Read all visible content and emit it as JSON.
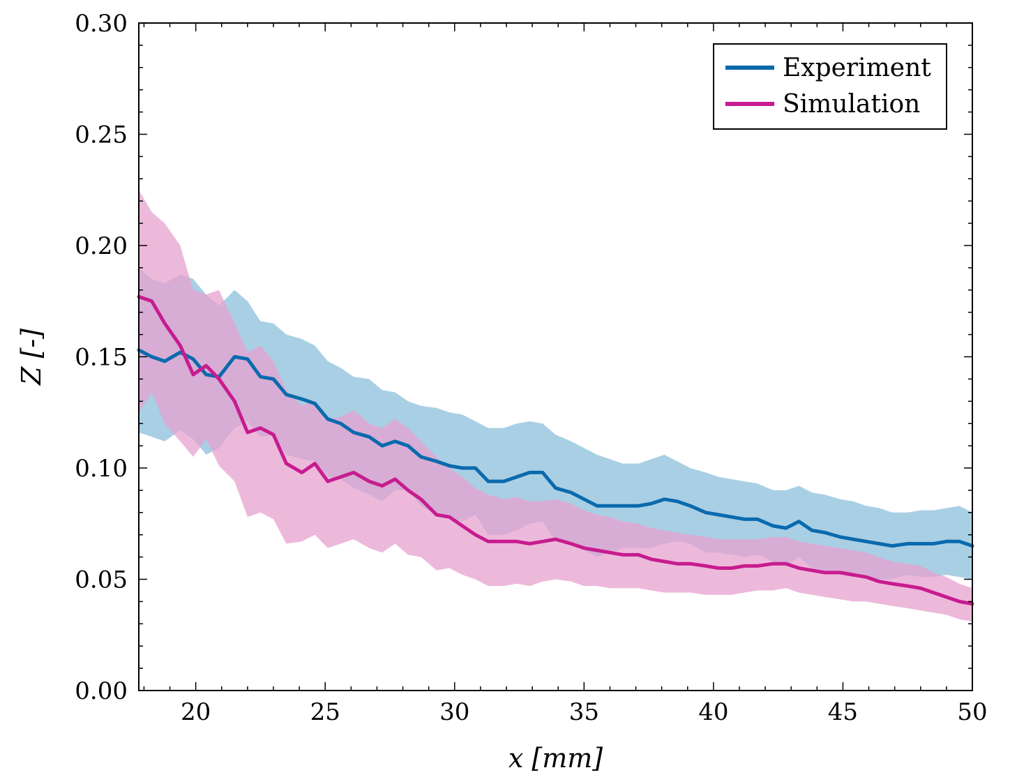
{
  "chart_data": {
    "type": "line",
    "xlabel": "x [mm]",
    "ylabel": "Z [-]",
    "xlim": [
      17.8,
      50
    ],
    "ylim": [
      0,
      0.3
    ],
    "xticks": [
      "20",
      "25",
      "30",
      "35",
      "40",
      "45",
      "50"
    ],
    "yticks": [
      "0.00",
      "0.05",
      "0.10",
      "0.15",
      "0.20",
      "0.25",
      "0.30"
    ],
    "legend_position": "top-right",
    "grid": false,
    "series": [
      {
        "name": "Experiment",
        "color": "#0a6aad",
        "band_color": "#9ac7e1",
        "x": [
          17.8,
          18.3,
          18.8,
          19.4,
          19.9,
          20.4,
          20.9,
          21.5,
          22.0,
          22.5,
          23.0,
          23.5,
          24.1,
          24.6,
          25.1,
          25.6,
          26.1,
          26.7,
          27.2,
          27.7,
          28.2,
          28.7,
          29.3,
          29.8,
          30.3,
          30.8,
          31.3,
          31.9,
          32.4,
          32.9,
          33.4,
          33.9,
          34.5,
          35.0,
          35.5,
          36.0,
          36.5,
          37.1,
          37.6,
          38.1,
          38.6,
          39.1,
          39.7,
          40.2,
          40.7,
          41.2,
          41.7,
          42.3,
          42.8,
          43.3,
          43.8,
          44.3,
          44.9,
          45.4,
          45.9,
          46.4,
          46.9,
          47.5,
          48.0,
          48.5,
          49.0,
          49.5,
          50.0
        ],
        "values": [
          0.153,
          0.15,
          0.148,
          0.152,
          0.149,
          0.142,
          0.141,
          0.15,
          0.149,
          0.141,
          0.14,
          0.133,
          0.131,
          0.129,
          0.122,
          0.12,
          0.116,
          0.114,
          0.11,
          0.112,
          0.11,
          0.105,
          0.103,
          0.101,
          0.1,
          0.1,
          0.094,
          0.094,
          0.096,
          0.098,
          0.098,
          0.091,
          0.089,
          0.086,
          0.083,
          0.083,
          0.083,
          0.083,
          0.084,
          0.086,
          0.085,
          0.083,
          0.08,
          0.079,
          0.078,
          0.077,
          0.077,
          0.074,
          0.073,
          0.076,
          0.072,
          0.071,
          0.069,
          0.068,
          0.067,
          0.066,
          0.065,
          0.066,
          0.066,
          0.066,
          0.067,
          0.067,
          0.065
        ],
        "upper": [
          0.19,
          0.185,
          0.183,
          0.187,
          0.185,
          0.178,
          0.173,
          0.18,
          0.175,
          0.166,
          0.165,
          0.16,
          0.158,
          0.155,
          0.148,
          0.145,
          0.141,
          0.14,
          0.135,
          0.134,
          0.13,
          0.128,
          0.127,
          0.125,
          0.124,
          0.121,
          0.118,
          0.118,
          0.12,
          0.121,
          0.12,
          0.115,
          0.112,
          0.109,
          0.106,
          0.104,
          0.102,
          0.102,
          0.104,
          0.106,
          0.103,
          0.1,
          0.098,
          0.096,
          0.095,
          0.094,
          0.093,
          0.09,
          0.09,
          0.092,
          0.089,
          0.088,
          0.086,
          0.085,
          0.083,
          0.082,
          0.08,
          0.08,
          0.081,
          0.081,
          0.082,
          0.083,
          0.08
        ],
        "lower": [
          0.116,
          0.114,
          0.112,
          0.117,
          0.113,
          0.106,
          0.109,
          0.118,
          0.121,
          0.114,
          0.115,
          0.106,
          0.104,
          0.103,
          0.096,
          0.095,
          0.091,
          0.088,
          0.085,
          0.09,
          0.09,
          0.083,
          0.079,
          0.077,
          0.076,
          0.079,
          0.07,
          0.07,
          0.072,
          0.075,
          0.076,
          0.067,
          0.066,
          0.063,
          0.06,
          0.062,
          0.064,
          0.064,
          0.064,
          0.066,
          0.067,
          0.066,
          0.062,
          0.062,
          0.061,
          0.06,
          0.061,
          0.058,
          0.056,
          0.06,
          0.055,
          0.054,
          0.052,
          0.051,
          0.051,
          0.05,
          0.05,
          0.052,
          0.051,
          0.051,
          0.052,
          0.051,
          0.05
        ]
      },
      {
        "name": "Simulation",
        "color": "#c71c8f",
        "band_color": "#e7a2cf",
        "x": [
          17.8,
          18.3,
          18.8,
          19.4,
          19.9,
          20.4,
          20.9,
          21.5,
          22.0,
          22.5,
          23.0,
          23.5,
          24.1,
          24.6,
          25.1,
          25.6,
          26.1,
          26.7,
          27.2,
          27.7,
          28.2,
          28.7,
          29.3,
          29.8,
          30.3,
          30.8,
          31.3,
          31.9,
          32.4,
          32.9,
          33.4,
          33.9,
          34.5,
          35.0,
          35.5,
          36.0,
          36.5,
          37.1,
          37.6,
          38.1,
          38.6,
          39.1,
          39.7,
          40.2,
          40.7,
          41.2,
          41.7,
          42.3,
          42.8,
          43.3,
          43.8,
          44.3,
          44.9,
          45.4,
          45.9,
          46.4,
          46.9,
          47.5,
          48.0,
          48.5,
          49.0,
          49.5,
          50.0
        ],
        "values": [
          0.177,
          0.175,
          0.165,
          0.155,
          0.142,
          0.146,
          0.14,
          0.13,
          0.116,
          0.118,
          0.115,
          0.102,
          0.098,
          0.102,
          0.094,
          0.096,
          0.098,
          0.094,
          0.092,
          0.095,
          0.09,
          0.086,
          0.079,
          0.078,
          0.074,
          0.07,
          0.067,
          0.067,
          0.067,
          0.066,
          0.067,
          0.068,
          0.066,
          0.064,
          0.063,
          0.062,
          0.061,
          0.061,
          0.059,
          0.058,
          0.057,
          0.057,
          0.056,
          0.055,
          0.055,
          0.056,
          0.056,
          0.057,
          0.057,
          0.055,
          0.054,
          0.053,
          0.053,
          0.052,
          0.051,
          0.049,
          0.048,
          0.047,
          0.046,
          0.044,
          0.042,
          0.04,
          0.039
        ],
        "upper": [
          0.225,
          0.215,
          0.21,
          0.2,
          0.18,
          0.178,
          0.18,
          0.165,
          0.152,
          0.155,
          0.148,
          0.135,
          0.128,
          0.13,
          0.122,
          0.123,
          0.126,
          0.12,
          0.118,
          0.122,
          0.118,
          0.112,
          0.105,
          0.1,
          0.096,
          0.091,
          0.088,
          0.086,
          0.087,
          0.085,
          0.085,
          0.086,
          0.084,
          0.081,
          0.079,
          0.078,
          0.076,
          0.075,
          0.073,
          0.072,
          0.071,
          0.07,
          0.069,
          0.068,
          0.068,
          0.068,
          0.068,
          0.069,
          0.069,
          0.067,
          0.066,
          0.065,
          0.064,
          0.063,
          0.062,
          0.06,
          0.058,
          0.057,
          0.056,
          0.053,
          0.051,
          0.048,
          0.046
        ],
        "lower": [
          0.125,
          0.134,
          0.12,
          0.112,
          0.105,
          0.113,
          0.101,
          0.094,
          0.078,
          0.08,
          0.077,
          0.066,
          0.067,
          0.07,
          0.064,
          0.066,
          0.068,
          0.064,
          0.062,
          0.066,
          0.061,
          0.06,
          0.054,
          0.055,
          0.052,
          0.05,
          0.047,
          0.047,
          0.048,
          0.047,
          0.049,
          0.05,
          0.049,
          0.047,
          0.047,
          0.046,
          0.046,
          0.046,
          0.045,
          0.044,
          0.044,
          0.044,
          0.043,
          0.043,
          0.043,
          0.044,
          0.045,
          0.045,
          0.046,
          0.044,
          0.043,
          0.042,
          0.041,
          0.04,
          0.04,
          0.039,
          0.038,
          0.037,
          0.036,
          0.035,
          0.034,
          0.032,
          0.031
        ]
      }
    ]
  }
}
